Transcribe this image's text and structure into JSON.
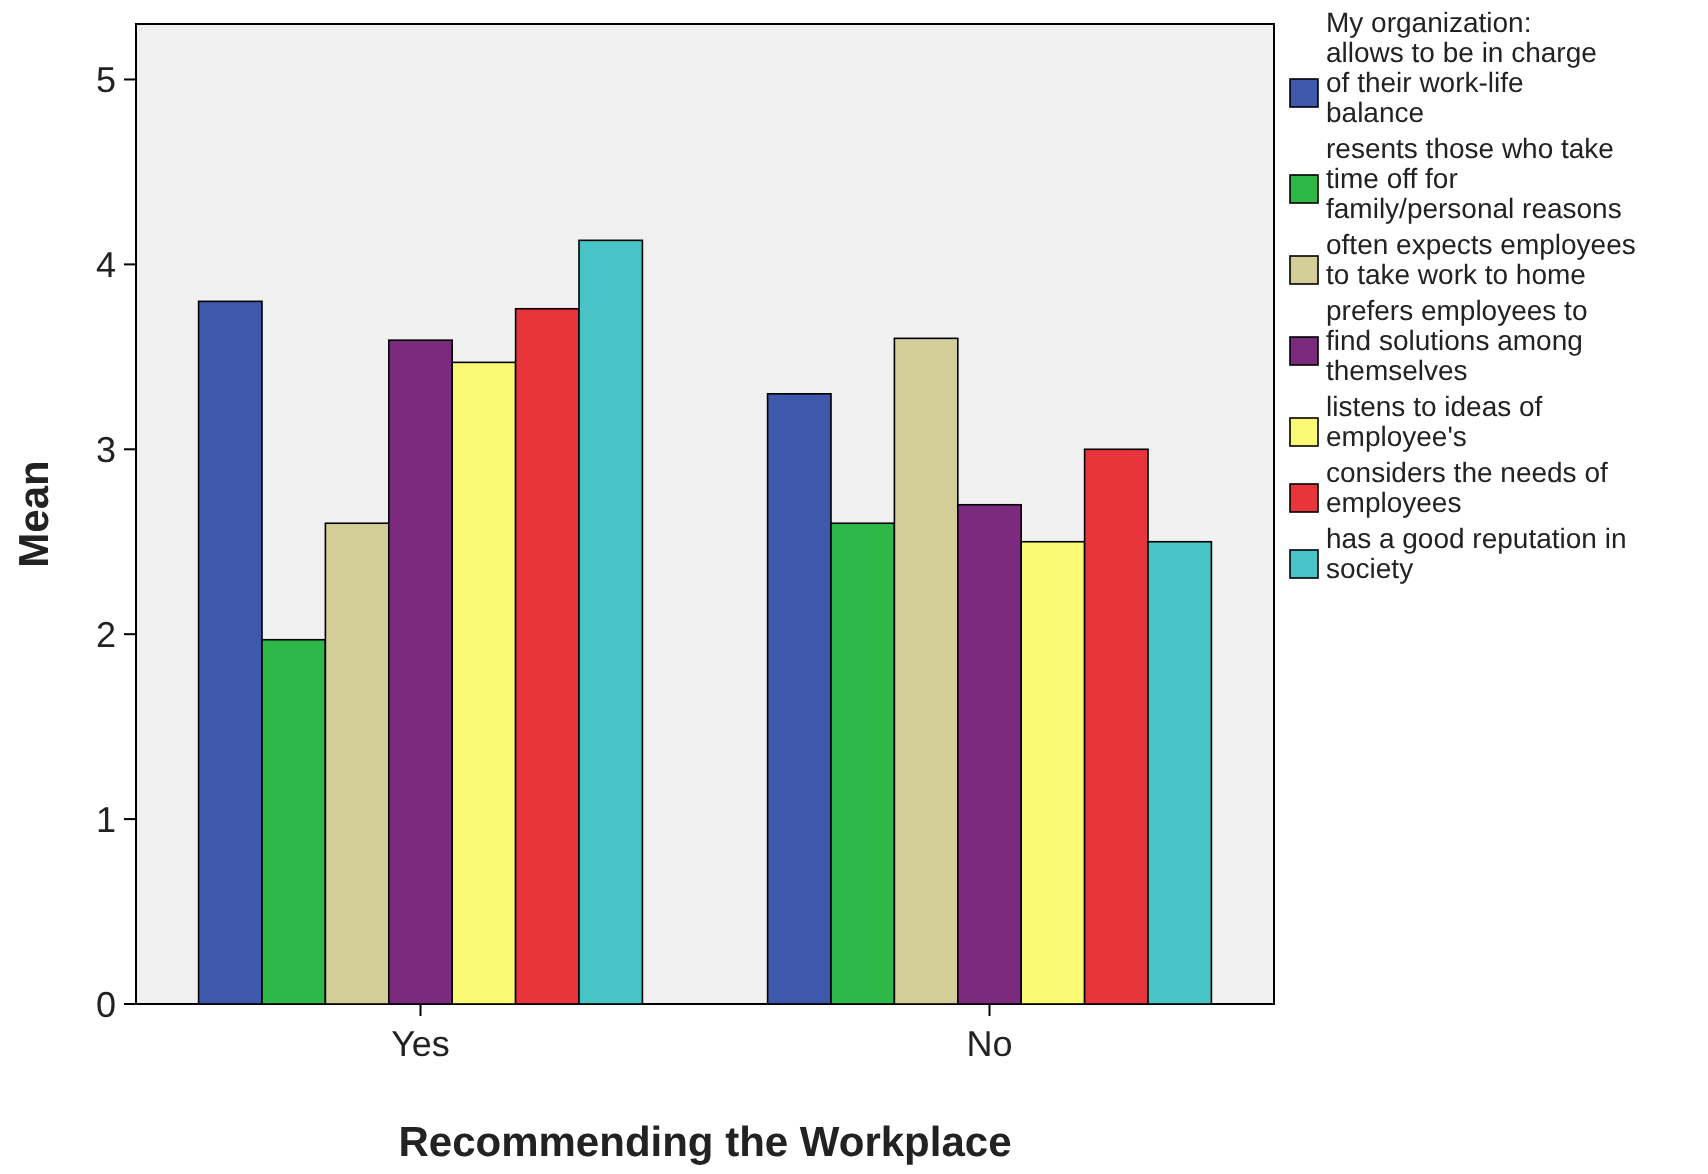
{
  "chart_data": {
    "type": "bar",
    "xlabel": "Recommending the Workplace",
    "ylabel": "Mean",
    "legend_title": "My organization:",
    "categories": [
      "Yes",
      "No"
    ],
    "ylim": [
      0,
      5.3
    ],
    "yticks": [
      0,
      1,
      2,
      3,
      4,
      5
    ],
    "legend": "right",
    "grid": false,
    "series": [
      {
        "name": "allows to be in charge of their work-life balance",
        "color": "#3e58ac",
        "values": [
          3.8,
          3.3
        ]
      },
      {
        "name": "resents those who take time off for family/personal reasons",
        "color": "#2eb848",
        "values": [
          1.97,
          2.6
        ]
      },
      {
        "name": "often expects employees to take work to home",
        "color": "#d3ce97",
        "values": [
          2.6,
          3.6
        ]
      },
      {
        "name": "prefers employees to find solutions among themselves",
        "color": "#7b2a7d",
        "values": [
          3.59,
          2.7
        ]
      },
      {
        "name": "listens to ideas of employee's",
        "color": "#fbf873",
        "values": [
          3.47,
          2.5
        ]
      },
      {
        "name": "considers the needs of employees",
        "color": "#e8353b",
        "values": [
          3.76,
          3.0
        ]
      },
      {
        "name": "has a good reputation in society",
        "color": "#48c4c6",
        "values": [
          4.13,
          2.5
        ]
      }
    ]
  }
}
